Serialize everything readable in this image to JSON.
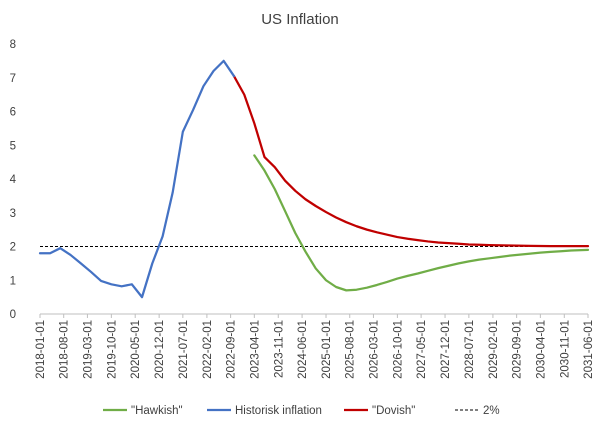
{
  "chart_data": {
    "type": "line",
    "title": "US Inflation",
    "xlabel": "",
    "ylabel": "",
    "ylim": [
      0,
      8
    ],
    "yticks": [
      0,
      1,
      2,
      3,
      4,
      5,
      6,
      7,
      8
    ],
    "x_start": "2018-01-01",
    "x_end": "2031-06-01",
    "xticks": [
      "2018-01-01",
      "2018-08-01",
      "2019-03-01",
      "2019-10-01",
      "2020-05-01",
      "2020-12-01",
      "2021-07-01",
      "2022-02-01",
      "2022-09-01",
      "2023-04-01",
      "2023-11-01",
      "2024-06-01",
      "2025-01-01",
      "2025-08-01",
      "2026-03-01",
      "2026-10-01",
      "2027-05-01",
      "2027-12-01",
      "2028-07-01",
      "2029-02-01",
      "2029-09-01",
      "2030-04-01",
      "2030-11-01",
      "2031-06-01"
    ],
    "grid": false,
    "legend_position": "bottom",
    "series": [
      {
        "name": "\"Hawkish\"",
        "color": "#70ad47",
        "style": "solid",
        "points": [
          [
            "2023-04-01",
            4.7
          ],
          [
            "2023-07-01",
            4.25
          ],
          [
            "2023-10-01",
            3.7
          ],
          [
            "2024-01-01",
            3.05
          ],
          [
            "2024-04-01",
            2.4
          ],
          [
            "2024-07-01",
            1.85
          ],
          [
            "2024-10-01",
            1.35
          ],
          [
            "2025-01-01",
            1.0
          ],
          [
            "2025-04-01",
            0.8
          ],
          [
            "2025-07-01",
            0.7
          ],
          [
            "2025-10-01",
            0.72
          ],
          [
            "2026-01-01",
            0.78
          ],
          [
            "2026-04-01",
            0.86
          ],
          [
            "2026-07-01",
            0.95
          ],
          [
            "2026-10-01",
            1.05
          ],
          [
            "2027-01-01",
            1.13
          ],
          [
            "2027-04-01",
            1.2
          ],
          [
            "2027-07-01",
            1.28
          ],
          [
            "2027-10-01",
            1.36
          ],
          [
            "2028-01-01",
            1.43
          ],
          [
            "2028-04-01",
            1.5
          ],
          [
            "2028-07-01",
            1.56
          ],
          [
            "2028-10-01",
            1.61
          ],
          [
            "2029-01-01",
            1.65
          ],
          [
            "2029-04-01",
            1.69
          ],
          [
            "2029-07-01",
            1.73
          ],
          [
            "2029-10-01",
            1.76
          ],
          [
            "2030-01-01",
            1.79
          ],
          [
            "2030-04-01",
            1.82
          ],
          [
            "2030-07-01",
            1.84
          ],
          [
            "2030-10-01",
            1.86
          ],
          [
            "2031-01-01",
            1.88
          ],
          [
            "2031-06-01",
            1.9
          ]
        ]
      },
      {
        "name": "Historisk inflation",
        "color": "#4472c4",
        "style": "solid",
        "points": [
          [
            "2018-01-01",
            1.8
          ],
          [
            "2018-04-01",
            1.8
          ],
          [
            "2018-07-01",
            1.95
          ],
          [
            "2018-10-01",
            1.75
          ],
          [
            "2019-01-01",
            1.5
          ],
          [
            "2019-04-01",
            1.25
          ],
          [
            "2019-07-01",
            0.98
          ],
          [
            "2019-10-01",
            0.88
          ],
          [
            "2020-01-01",
            0.82
          ],
          [
            "2020-04-01",
            0.88
          ],
          [
            "2020-07-01",
            0.5
          ],
          [
            "2020-10-01",
            1.5
          ],
          [
            "2021-01-01",
            2.3
          ],
          [
            "2021-04-01",
            3.6
          ],
          [
            "2021-07-01",
            5.4
          ],
          [
            "2021-10-01",
            6.05
          ],
          [
            "2022-01-01",
            6.75
          ],
          [
            "2022-04-01",
            7.2
          ],
          [
            "2022-07-01",
            7.5
          ],
          [
            "2022-10-01",
            7.05
          ]
        ]
      },
      {
        "name": "\"Dovish\"",
        "color": "#c00000",
        "style": "solid",
        "points": [
          [
            "2022-10-01",
            7.05
          ],
          [
            "2023-01-01",
            6.5
          ],
          [
            "2023-04-01",
            5.65
          ],
          [
            "2023-07-01",
            4.65
          ],
          [
            "2023-10-01",
            4.35
          ],
          [
            "2024-01-01",
            3.95
          ],
          [
            "2024-04-01",
            3.65
          ],
          [
            "2024-07-01",
            3.4
          ],
          [
            "2024-10-01",
            3.2
          ],
          [
            "2025-01-01",
            3.02
          ],
          [
            "2025-04-01",
            2.86
          ],
          [
            "2025-07-01",
            2.72
          ],
          [
            "2025-10-01",
            2.6
          ],
          [
            "2026-01-01",
            2.5
          ],
          [
            "2026-04-01",
            2.42
          ],
          [
            "2026-07-01",
            2.35
          ],
          [
            "2026-10-01",
            2.28
          ],
          [
            "2027-01-01",
            2.23
          ],
          [
            "2027-04-01",
            2.19
          ],
          [
            "2027-07-01",
            2.15
          ],
          [
            "2027-10-01",
            2.12
          ],
          [
            "2028-01-01",
            2.1
          ],
          [
            "2028-04-01",
            2.08
          ],
          [
            "2028-07-01",
            2.06
          ],
          [
            "2028-10-01",
            2.05
          ],
          [
            "2029-01-01",
            2.04
          ],
          [
            "2029-07-01",
            2.03
          ],
          [
            "2030-01-01",
            2.02
          ],
          [
            "2030-07-01",
            2.01
          ],
          [
            "2031-06-01",
            2.01
          ]
        ]
      },
      {
        "name": "2%",
        "color": "#000000",
        "style": "dashed",
        "points": [
          [
            "2018-01-01",
            2.0
          ],
          [
            "2031-06-01",
            2.0
          ]
        ]
      }
    ]
  }
}
